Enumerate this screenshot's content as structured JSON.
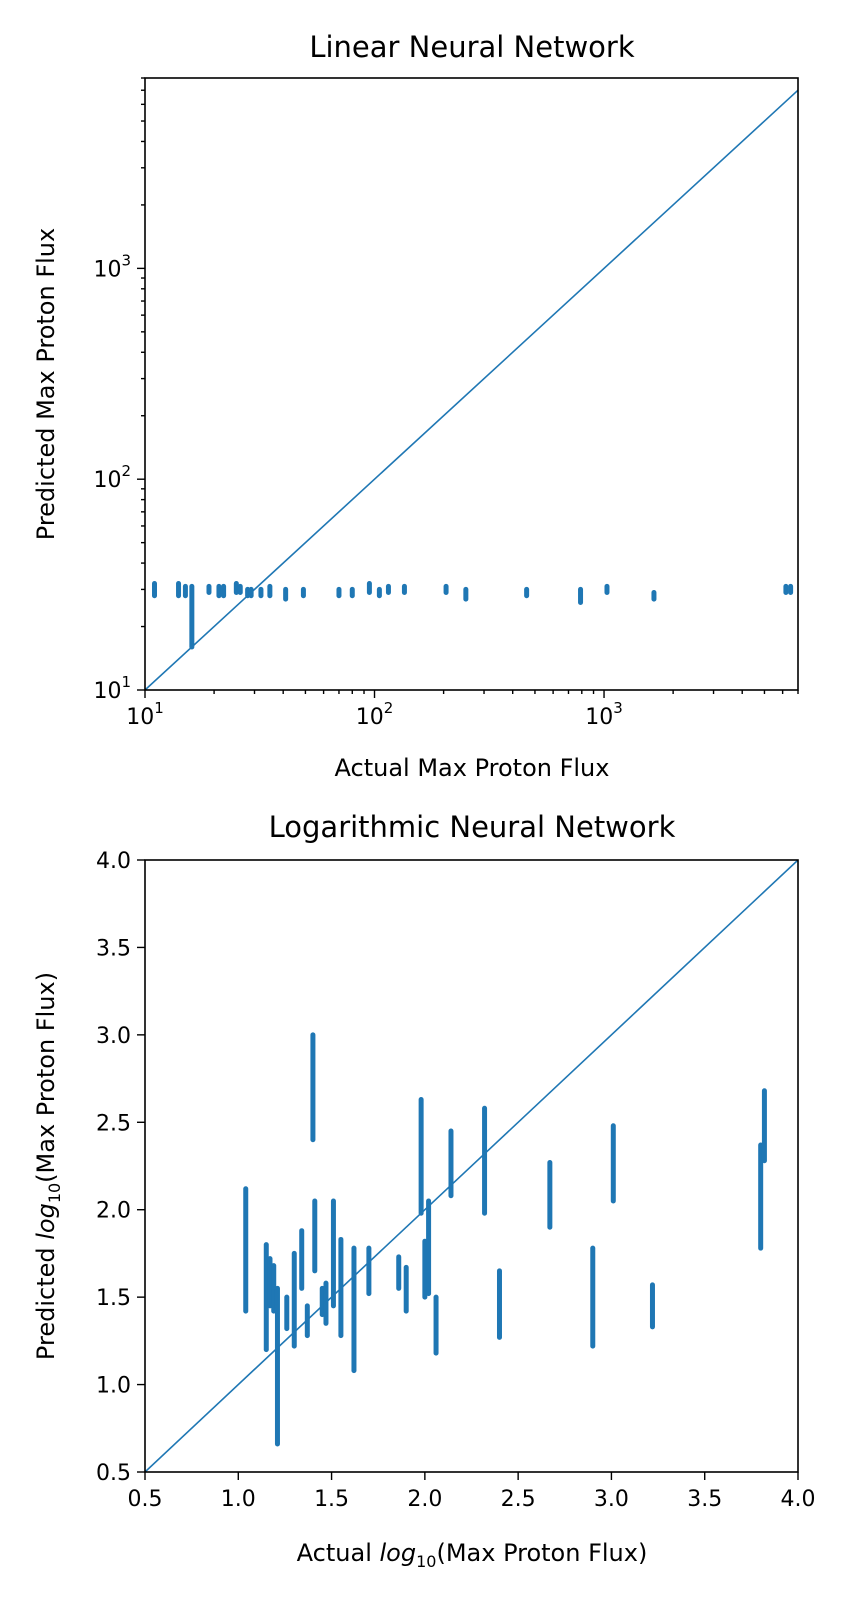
{
  "chart_data": [
    {
      "type": "scatter",
      "title": "Linear Neural Network",
      "xlabel": "Actual Max Proton Flux",
      "ylabel": "Predicted Max Proton Flux",
      "xscale": "log",
      "yscale": "log",
      "xlim": [
        10,
        7000
      ],
      "ylim": [
        10,
        8000
      ],
      "xticks": [
        10,
        100,
        1000
      ],
      "yticks": [
        10,
        100,
        1000
      ],
      "xtick_labels": [
        {
          "base": "10",
          "exp": "1"
        },
        {
          "base": "10",
          "exp": "2"
        },
        {
          "base": "10",
          "exp": "3"
        }
      ],
      "ytick_labels": [
        {
          "base": "10",
          "exp": "1"
        },
        {
          "base": "10",
          "exp": "2"
        },
        {
          "base": "10",
          "exp": "3"
        }
      ],
      "identity_line": true,
      "color": "#1f77b4",
      "series": [
        {
          "values": [
            {
              "x": 11,
              "y": [
                28,
                32
              ]
            },
            {
              "x": 14,
              "y": [
                28,
                32
              ]
            },
            {
              "x": 15,
              "y": [
                28,
                31
              ]
            },
            {
              "x": 16,
              "y": [
                16,
                31
              ]
            },
            {
              "x": 19,
              "y": [
                29,
                31
              ]
            },
            {
              "x": 21,
              "y": [
                28,
                31
              ]
            },
            {
              "x": 22,
              "y": [
                28,
                31
              ]
            },
            {
              "x": 25,
              "y": [
                29,
                32
              ]
            },
            {
              "x": 26,
              "y": [
                29,
                31
              ]
            },
            {
              "x": 28,
              "y": [
                28,
                30
              ]
            },
            {
              "x": 29,
              "y": [
                28,
                30
              ]
            },
            {
              "x": 32,
              "y": [
                28,
                30
              ]
            },
            {
              "x": 35,
              "y": [
                28,
                31
              ]
            },
            {
              "x": 41,
              "y": [
                27,
                30
              ]
            },
            {
              "x": 49,
              "y": [
                28,
                30
              ]
            },
            {
              "x": 70,
              "y": [
                28,
                30
              ]
            },
            {
              "x": 80,
              "y": [
                28,
                30
              ]
            },
            {
              "x": 95,
              "y": [
                29,
                32
              ]
            },
            {
              "x": 105,
              "y": [
                28,
                30
              ]
            },
            {
              "x": 115,
              "y": [
                29,
                31
              ]
            },
            {
              "x": 135,
              "y": [
                29,
                31
              ]
            },
            {
              "x": 205,
              "y": [
                29,
                31
              ]
            },
            {
              "x": 250,
              "y": [
                27,
                30
              ]
            },
            {
              "x": 460,
              "y": [
                28,
                30
              ]
            },
            {
              "x": 790,
              "y": [
                26,
                30
              ]
            },
            {
              "x": 1030,
              "y": [
                29,
                31
              ]
            },
            {
              "x": 1650,
              "y": [
                27,
                29
              ]
            },
            {
              "x": 6200,
              "y": [
                29,
                31
              ]
            },
            {
              "x": 6500,
              "y": [
                29,
                31
              ]
            }
          ]
        }
      ]
    },
    {
      "type": "scatter",
      "title": "Logarithmic Neural Network",
      "xlabel": {
        "pre": "Actual ",
        "ital": "log",
        "sub": "10",
        "post": "(Max Proton Flux)"
      },
      "ylabel": {
        "pre": "Predicted ",
        "ital": "log",
        "sub": "10",
        "post": "(Max Proton Flux)"
      },
      "xlim": [
        0.5,
        4.0
      ],
      "ylim": [
        0.5,
        4.0
      ],
      "xticks": [
        "0.5",
        "1.0",
        "1.5",
        "2.0",
        "2.5",
        "3.0",
        "3.5",
        "4.0"
      ],
      "yticks": [
        "0.5",
        "1.0",
        "1.5",
        "2.0",
        "2.5",
        "3.0",
        "3.5",
        "4.0"
      ],
      "identity_line": true,
      "color": "#1f77b4",
      "series": [
        {
          "values": [
            {
              "x": 1.04,
              "y": [
                1.42,
                2.12
              ]
            },
            {
              "x": 1.15,
              "y": [
                1.2,
                1.8
              ]
            },
            {
              "x": 1.17,
              "y": [
                1.45,
                1.72
              ]
            },
            {
              "x": 1.19,
              "y": [
                1.42,
                1.68
              ]
            },
            {
              "x": 1.21,
              "y": [
                0.66,
                1.55
              ]
            },
            {
              "x": 1.26,
              "y": [
                1.32,
                1.5
              ]
            },
            {
              "x": 1.3,
              "y": [
                1.22,
                1.75
              ]
            },
            {
              "x": 1.34,
              "y": [
                1.55,
                1.88
              ]
            },
            {
              "x": 1.37,
              "y": [
                1.28,
                1.45
              ]
            },
            {
              "x": 1.4,
              "y": [
                2.4,
                3.0
              ]
            },
            {
              "x": 1.41,
              "y": [
                1.65,
                2.05
              ]
            },
            {
              "x": 1.45,
              "y": [
                1.4,
                1.55
              ]
            },
            {
              "x": 1.47,
              "y": [
                1.35,
                1.58
              ]
            },
            {
              "x": 1.51,
              "y": [
                1.45,
                2.05
              ]
            },
            {
              "x": 1.55,
              "y": [
                1.28,
                1.83
              ]
            },
            {
              "x": 1.62,
              "y": [
                1.08,
                1.78
              ]
            },
            {
              "x": 1.7,
              "y": [
                1.52,
                1.78
              ]
            },
            {
              "x": 1.86,
              "y": [
                1.55,
                1.73
              ]
            },
            {
              "x": 1.9,
              "y": [
                1.42,
                1.67
              ]
            },
            {
              "x": 1.98,
              "y": [
                1.98,
                2.63
              ]
            },
            {
              "x": 2.0,
              "y": [
                1.5,
                1.82
              ]
            },
            {
              "x": 2.02,
              "y": [
                1.52,
                2.05
              ]
            },
            {
              "x": 2.06,
              "y": [
                1.18,
                1.5
              ]
            },
            {
              "x": 2.14,
              "y": [
                2.08,
                2.45
              ]
            },
            {
              "x": 2.32,
              "y": [
                1.98,
                2.58
              ]
            },
            {
              "x": 2.4,
              "y": [
                1.27,
                1.65
              ]
            },
            {
              "x": 2.67,
              "y": [
                1.9,
                2.27
              ]
            },
            {
              "x": 2.9,
              "y": [
                1.22,
                1.78
              ]
            },
            {
              "x": 3.01,
              "y": [
                2.05,
                2.48
              ]
            },
            {
              "x": 3.22,
              "y": [
                1.33,
                1.57
              ]
            },
            {
              "x": 3.8,
              "y": [
                1.78,
                2.37
              ]
            },
            {
              "x": 3.82,
              "y": [
                2.28,
                2.68
              ]
            }
          ]
        }
      ]
    }
  ]
}
